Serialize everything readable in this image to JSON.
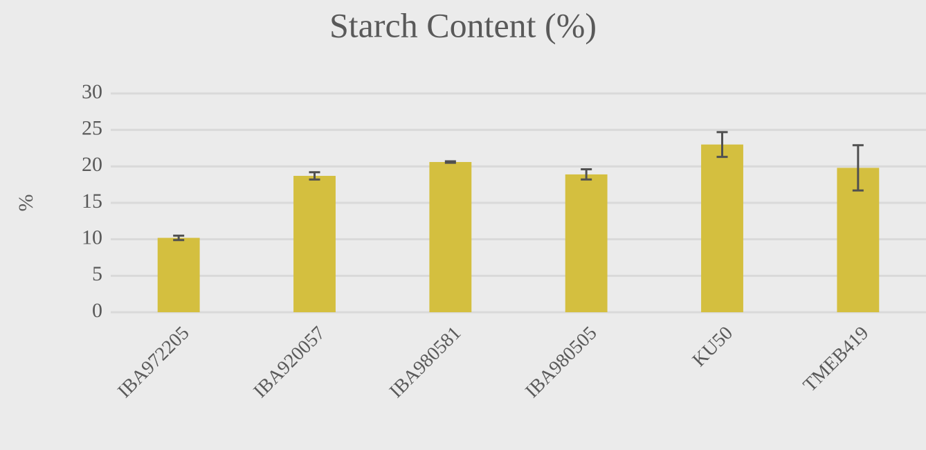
{
  "chart_data": {
    "type": "bar",
    "title": "Starch Content (%)",
    "y_label": "%",
    "categories": [
      "IBA972205",
      "IBA920057",
      "IBA980581",
      "IBA980505",
      "KU50",
      "TMEB419"
    ],
    "values": [
      10.2,
      18.7,
      20.6,
      18.9,
      23.0,
      19.8
    ],
    "errors": [
      0.3,
      0.5,
      0.1,
      0.7,
      1.7,
      3.1
    ],
    "color": "#d4bf3f",
    "error_color": "#505050",
    "ylim": [
      0,
      30
    ],
    "yticks": [
      0,
      5,
      10,
      15,
      20,
      25,
      30
    ],
    "grid": true
  }
}
